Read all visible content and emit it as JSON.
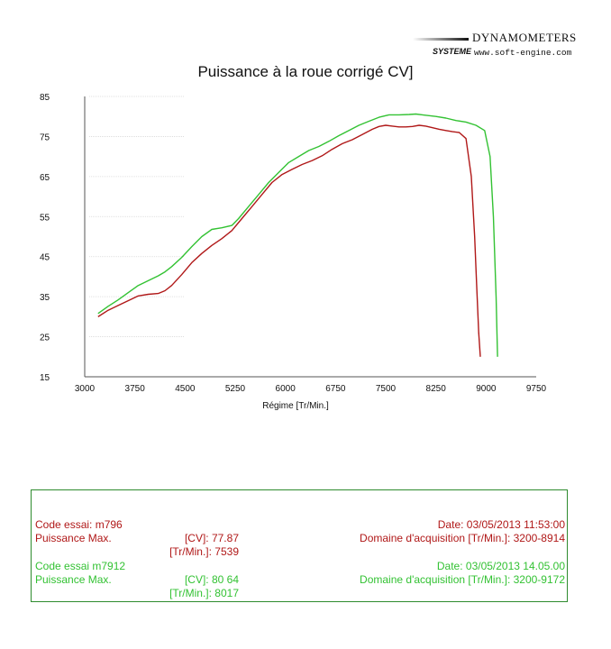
{
  "brand": {
    "title": "DYNAMOMETERS",
    "logo_text": "SYSTEME",
    "url": "www.soft-engine.com"
  },
  "chart_data": {
    "type": "line",
    "title": "Puissance à la roue corrigé  CV]",
    "xlabel": "Régime [Tr/Min.]",
    "ylabel": "",
    "xlim": [
      3000,
      9750
    ],
    "ylim": [
      15,
      85
    ],
    "x_ticks": [
      3000,
      3750,
      4500,
      5250,
      6000,
      6750,
      7500,
      8250,
      9000,
      9750
    ],
    "y_ticks": [
      15,
      25,
      35,
      45,
      55,
      65,
      75,
      85
    ],
    "series": [
      {
        "name": "m796",
        "color": "#b01818",
        "x": [
          3200,
          3350,
          3500,
          3650,
          3800,
          3950,
          4100,
          4200,
          4300,
          4450,
          4600,
          4750,
          4900,
          5050,
          5200,
          5350,
          5500,
          5650,
          5800,
          5950,
          6100,
          6250,
          6400,
          6550,
          6700,
          6850,
          7000,
          7150,
          7300,
          7400,
          7500,
          7600,
          7700,
          7800,
          7900,
          8000,
          8100,
          8200,
          8300,
          8400,
          8500,
          8600,
          8700,
          8780,
          8830,
          8860,
          8890,
          8914
        ],
        "y": [
          30,
          31.6,
          32.8,
          34.0,
          35.2,
          35.6,
          35.8,
          36.5,
          37.8,
          40.5,
          43.5,
          45.8,
          47.8,
          49.5,
          51.5,
          54.5,
          57.5,
          60.5,
          63.5,
          65.5,
          66.8,
          68.0,
          69.0,
          70.2,
          71.8,
          73.2,
          74.2,
          75.5,
          76.8,
          77.5,
          77.8,
          77.6,
          77.4,
          77.4,
          77.5,
          77.8,
          77.6,
          77.2,
          76.8,
          76.5,
          76.2,
          76.0,
          74.5,
          65.0,
          50.0,
          38.0,
          26.0,
          20.0
        ]
      },
      {
        "name": "m7912",
        "color": "#33c233",
        "x": [
          3200,
          3350,
          3500,
          3650,
          3800,
          3950,
          4100,
          4200,
          4300,
          4450,
          4600,
          4750,
          4900,
          5050,
          5200,
          5300,
          5450,
          5600,
          5750,
          5900,
          6050,
          6200,
          6350,
          6500,
          6650,
          6800,
          6950,
          7100,
          7250,
          7400,
          7550,
          7700,
          7850,
          7950,
          8050,
          8150,
          8250,
          8400,
          8550,
          8700,
          8850,
          8980,
          9060,
          9110,
          9150,
          9172
        ],
        "y": [
          30.8,
          32.6,
          34.2,
          36.0,
          37.8,
          39.0,
          40.2,
          41.2,
          42.5,
          44.8,
          47.5,
          50.0,
          51.8,
          52.2,
          52.8,
          54.5,
          57.5,
          60.5,
          63.5,
          66.0,
          68.5,
          70.0,
          71.5,
          72.5,
          73.8,
          75.2,
          76.5,
          77.8,
          78.8,
          79.8,
          80.4,
          80.4,
          80.5,
          80.6,
          80.4,
          80.2,
          80.0,
          79.6,
          79.0,
          78.6,
          77.8,
          76.5,
          70.0,
          55.0,
          35.0,
          20.0
        ]
      }
    ]
  },
  "tests": [
    {
      "label": "Code essai: m796",
      "power_label": "Puissance Max.",
      "cv_label": "[CV]: 77.87",
      "rpm_label": "[Tr/Min.]: 7539",
      "date": "Date: 03/05/2013 11:53:00",
      "domain": "Domaine d'acquisition [Tr/Min.]: 3200-8914",
      "color": "#b01818"
    },
    {
      "label": "Code essai  m7912",
      "power_label": "Puissance Max.",
      "cv_label": "[CV]: 80 64",
      "rpm_label": "[Tr/Min.]: 8017",
      "date": "Date: 03/05/2013 14.05.00",
      "domain": "Domaine d'acquisition [Tr/Min.]: 3200-9172",
      "color": "#33c233"
    }
  ]
}
